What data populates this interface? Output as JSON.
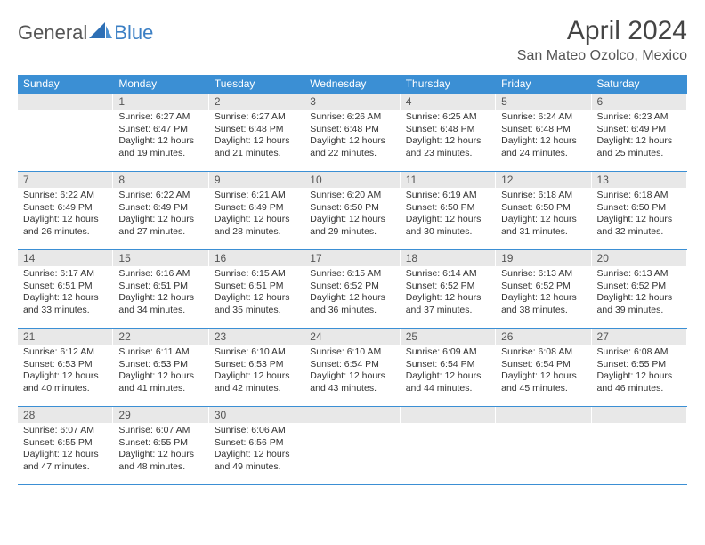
{
  "logo": {
    "part1": "General",
    "part2": "Blue"
  },
  "header": {
    "month_title": "April 2024",
    "location": "San Mateo Ozolco, Mexico"
  },
  "colors": {
    "header_bg": "#3b8fd4",
    "header_text": "#ffffff",
    "daynum_bg": "#e8e8e8",
    "border": "#3b8fd4",
    "logo_accent": "#3b7fc4"
  },
  "day_names": [
    "Sunday",
    "Monday",
    "Tuesday",
    "Wednesday",
    "Thursday",
    "Friday",
    "Saturday"
  ],
  "weeks": [
    [
      null,
      {
        "n": "1",
        "sunrise": "Sunrise: 6:27 AM",
        "sunset": "Sunset: 6:47 PM",
        "day1": "Daylight: 12 hours",
        "day2": "and 19 minutes."
      },
      {
        "n": "2",
        "sunrise": "Sunrise: 6:27 AM",
        "sunset": "Sunset: 6:48 PM",
        "day1": "Daylight: 12 hours",
        "day2": "and 21 minutes."
      },
      {
        "n": "3",
        "sunrise": "Sunrise: 6:26 AM",
        "sunset": "Sunset: 6:48 PM",
        "day1": "Daylight: 12 hours",
        "day2": "and 22 minutes."
      },
      {
        "n": "4",
        "sunrise": "Sunrise: 6:25 AM",
        "sunset": "Sunset: 6:48 PM",
        "day1": "Daylight: 12 hours",
        "day2": "and 23 minutes."
      },
      {
        "n": "5",
        "sunrise": "Sunrise: 6:24 AM",
        "sunset": "Sunset: 6:48 PM",
        "day1": "Daylight: 12 hours",
        "day2": "and 24 minutes."
      },
      {
        "n": "6",
        "sunrise": "Sunrise: 6:23 AM",
        "sunset": "Sunset: 6:49 PM",
        "day1": "Daylight: 12 hours",
        "day2": "and 25 minutes."
      }
    ],
    [
      {
        "n": "7",
        "sunrise": "Sunrise: 6:22 AM",
        "sunset": "Sunset: 6:49 PM",
        "day1": "Daylight: 12 hours",
        "day2": "and 26 minutes."
      },
      {
        "n": "8",
        "sunrise": "Sunrise: 6:22 AM",
        "sunset": "Sunset: 6:49 PM",
        "day1": "Daylight: 12 hours",
        "day2": "and 27 minutes."
      },
      {
        "n": "9",
        "sunrise": "Sunrise: 6:21 AM",
        "sunset": "Sunset: 6:49 PM",
        "day1": "Daylight: 12 hours",
        "day2": "and 28 minutes."
      },
      {
        "n": "10",
        "sunrise": "Sunrise: 6:20 AM",
        "sunset": "Sunset: 6:50 PM",
        "day1": "Daylight: 12 hours",
        "day2": "and 29 minutes."
      },
      {
        "n": "11",
        "sunrise": "Sunrise: 6:19 AM",
        "sunset": "Sunset: 6:50 PM",
        "day1": "Daylight: 12 hours",
        "day2": "and 30 minutes."
      },
      {
        "n": "12",
        "sunrise": "Sunrise: 6:18 AM",
        "sunset": "Sunset: 6:50 PM",
        "day1": "Daylight: 12 hours",
        "day2": "and 31 minutes."
      },
      {
        "n": "13",
        "sunrise": "Sunrise: 6:18 AM",
        "sunset": "Sunset: 6:50 PM",
        "day1": "Daylight: 12 hours",
        "day2": "and 32 minutes."
      }
    ],
    [
      {
        "n": "14",
        "sunrise": "Sunrise: 6:17 AM",
        "sunset": "Sunset: 6:51 PM",
        "day1": "Daylight: 12 hours",
        "day2": "and 33 minutes."
      },
      {
        "n": "15",
        "sunrise": "Sunrise: 6:16 AM",
        "sunset": "Sunset: 6:51 PM",
        "day1": "Daylight: 12 hours",
        "day2": "and 34 minutes."
      },
      {
        "n": "16",
        "sunrise": "Sunrise: 6:15 AM",
        "sunset": "Sunset: 6:51 PM",
        "day1": "Daylight: 12 hours",
        "day2": "and 35 minutes."
      },
      {
        "n": "17",
        "sunrise": "Sunrise: 6:15 AM",
        "sunset": "Sunset: 6:52 PM",
        "day1": "Daylight: 12 hours",
        "day2": "and 36 minutes."
      },
      {
        "n": "18",
        "sunrise": "Sunrise: 6:14 AM",
        "sunset": "Sunset: 6:52 PM",
        "day1": "Daylight: 12 hours",
        "day2": "and 37 minutes."
      },
      {
        "n": "19",
        "sunrise": "Sunrise: 6:13 AM",
        "sunset": "Sunset: 6:52 PM",
        "day1": "Daylight: 12 hours",
        "day2": "and 38 minutes."
      },
      {
        "n": "20",
        "sunrise": "Sunrise: 6:13 AM",
        "sunset": "Sunset: 6:52 PM",
        "day1": "Daylight: 12 hours",
        "day2": "and 39 minutes."
      }
    ],
    [
      {
        "n": "21",
        "sunrise": "Sunrise: 6:12 AM",
        "sunset": "Sunset: 6:53 PM",
        "day1": "Daylight: 12 hours",
        "day2": "and 40 minutes."
      },
      {
        "n": "22",
        "sunrise": "Sunrise: 6:11 AM",
        "sunset": "Sunset: 6:53 PM",
        "day1": "Daylight: 12 hours",
        "day2": "and 41 minutes."
      },
      {
        "n": "23",
        "sunrise": "Sunrise: 6:10 AM",
        "sunset": "Sunset: 6:53 PM",
        "day1": "Daylight: 12 hours",
        "day2": "and 42 minutes."
      },
      {
        "n": "24",
        "sunrise": "Sunrise: 6:10 AM",
        "sunset": "Sunset: 6:54 PM",
        "day1": "Daylight: 12 hours",
        "day2": "and 43 minutes."
      },
      {
        "n": "25",
        "sunrise": "Sunrise: 6:09 AM",
        "sunset": "Sunset: 6:54 PM",
        "day1": "Daylight: 12 hours",
        "day2": "and 44 minutes."
      },
      {
        "n": "26",
        "sunrise": "Sunrise: 6:08 AM",
        "sunset": "Sunset: 6:54 PM",
        "day1": "Daylight: 12 hours",
        "day2": "and 45 minutes."
      },
      {
        "n": "27",
        "sunrise": "Sunrise: 6:08 AM",
        "sunset": "Sunset: 6:55 PM",
        "day1": "Daylight: 12 hours",
        "day2": "and 46 minutes."
      }
    ],
    [
      {
        "n": "28",
        "sunrise": "Sunrise: 6:07 AM",
        "sunset": "Sunset: 6:55 PM",
        "day1": "Daylight: 12 hours",
        "day2": "and 47 minutes."
      },
      {
        "n": "29",
        "sunrise": "Sunrise: 6:07 AM",
        "sunset": "Sunset: 6:55 PM",
        "day1": "Daylight: 12 hours",
        "day2": "and 48 minutes."
      },
      {
        "n": "30",
        "sunrise": "Sunrise: 6:06 AM",
        "sunset": "Sunset: 6:56 PM",
        "day1": "Daylight: 12 hours",
        "day2": "and 49 minutes."
      },
      null,
      null,
      null,
      null
    ]
  ]
}
